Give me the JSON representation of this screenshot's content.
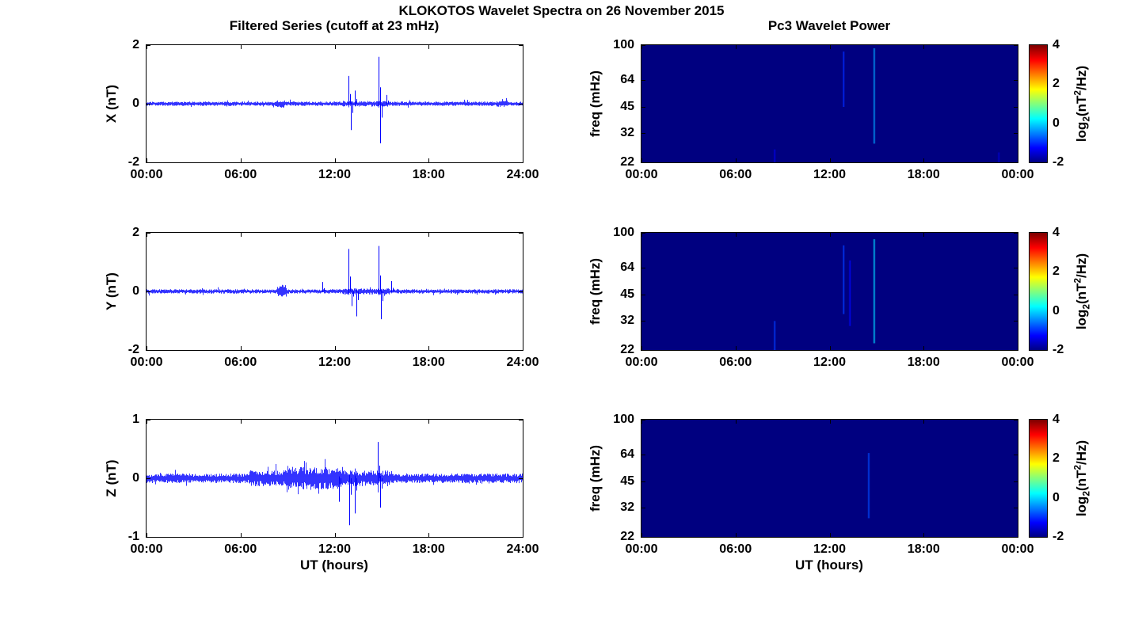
{
  "figure": {
    "title": "KLOKOTOS Wavelet Spectra on 26 November 2015",
    "left_column_title": "Filtered Series (cutoff at 23 mHz)",
    "right_column_title": "Pc3 Wavelet Power"
  },
  "colorbar": {
    "label": "log2(nT^2/Hz)",
    "label_parts": {
      "prefix": "log",
      "sub": "2",
      "mid": "(nT",
      "sup": "2",
      "suffix": "/Hz)"
    },
    "colormap": "jet",
    "clim": [
      -2,
      4
    ],
    "ticks": [
      4,
      2,
      0,
      -2
    ]
  },
  "chart_data": [
    {
      "type": "line",
      "component": "X",
      "ylabel": "X (nT)",
      "ylim": [
        -2,
        2
      ],
      "yticks": [
        2,
        0,
        -2
      ],
      "xlim_hours": [
        0,
        24
      ],
      "xticks": [
        "00:00",
        "06:00",
        "12:00",
        "18:00",
        "24:00"
      ],
      "line_color": "#0000ff",
      "noise_base": 0.05,
      "noise_bursts": [
        [
          8.2,
          8.8,
          0.09
        ],
        [
          12.5,
          15.5,
          0.065
        ],
        [
          22.3,
          23.0,
          0.08
        ]
      ],
      "spikes": [
        [
          12.9,
          0.95
        ],
        [
          13.05,
          -0.9
        ],
        [
          13.3,
          0.45
        ],
        [
          14.8,
          1.6
        ],
        [
          14.93,
          -1.35
        ],
        [
          15.3,
          0.3
        ]
      ]
    },
    {
      "type": "line",
      "component": "Y",
      "ylabel": "Y (nT)",
      "ylim": [
        -2,
        2
      ],
      "yticks": [
        2,
        0,
        -2
      ],
      "xlim_hours": [
        0,
        24
      ],
      "xticks": [
        "00:00",
        "06:00",
        "12:00",
        "18:00",
        "24:00"
      ],
      "line_color": "#0000ff",
      "noise_base": 0.05,
      "noise_bursts": [
        [
          8.3,
          8.9,
          0.15
        ],
        [
          12.5,
          15.5,
          0.07
        ]
      ],
      "spikes": [
        [
          11.2,
          0.32
        ],
        [
          12.9,
          1.45
        ],
        [
          13.1,
          -0.5
        ],
        [
          13.4,
          -0.85
        ],
        [
          14.8,
          1.55
        ],
        [
          14.95,
          -0.95
        ],
        [
          15.6,
          0.35
        ]
      ]
    },
    {
      "type": "line",
      "component": "Z",
      "ylabel": "Z (nT)",
      "xlabel": "UT (hours)",
      "ylim": [
        -1,
        1
      ],
      "yticks": [
        1,
        0,
        -1
      ],
      "xlim_hours": [
        0,
        24
      ],
      "xticks": [
        "00:00",
        "06:00",
        "12:00",
        "18:00",
        "24:00"
      ],
      "line_color": "#0000ff",
      "noise_base": 0.055,
      "noise_bursts": [
        [
          6.5,
          15.5,
          0.09
        ],
        [
          9.0,
          12.5,
          0.13
        ]
      ],
      "spikes": [
        [
          12.3,
          -0.4
        ],
        [
          12.95,
          -0.8
        ],
        [
          13.3,
          -0.6
        ],
        [
          14.75,
          0.62
        ],
        [
          14.88,
          -0.5
        ]
      ]
    },
    {
      "type": "heatmap",
      "component": "X",
      "ylabel": "freq (mHz)",
      "yscale": "log",
      "ylim": [
        22,
        100
      ],
      "yticks": [
        100,
        64,
        45,
        32,
        22
      ],
      "xlim_hours": [
        0,
        24
      ],
      "xticks": [
        "00:00",
        "06:00",
        "12:00",
        "18:00",
        "00:00"
      ],
      "clim": [
        -2,
        4
      ],
      "background_power": -2,
      "events": [
        [
          8.5,
          22,
          26,
          -1.4
        ],
        [
          12.9,
          45,
          92,
          -1.0
        ],
        [
          14.85,
          28,
          96,
          -0.3
        ],
        [
          22.8,
          22,
          25,
          -1.5
        ]
      ]
    },
    {
      "type": "heatmap",
      "component": "Y",
      "ylabel": "freq (mHz)",
      "yscale": "log",
      "ylim": [
        22,
        100
      ],
      "yticks": [
        100,
        64,
        45,
        32,
        22
      ],
      "xlim_hours": [
        0,
        24
      ],
      "xticks": [
        "00:00",
        "06:00",
        "12:00",
        "18:00",
        "00:00"
      ],
      "clim": [
        -2,
        4
      ],
      "background_power": -2,
      "events": [
        [
          8.5,
          22,
          32,
          -0.9
        ],
        [
          12.9,
          35,
          85,
          -0.9
        ],
        [
          13.3,
          30,
          70,
          -1.2
        ],
        [
          14.85,
          24,
          92,
          0.0
        ]
      ]
    },
    {
      "type": "heatmap",
      "component": "Z",
      "ylabel": "freq (mHz)",
      "xlabel": "UT (hours)",
      "yscale": "log",
      "ylim": [
        22,
        100
      ],
      "yticks": [
        100,
        64,
        45,
        32,
        22
      ],
      "xlim_hours": [
        0,
        24
      ],
      "xticks": [
        "00:00",
        "06:00",
        "12:00",
        "18:00",
        "00:00"
      ],
      "clim": [
        -2,
        4
      ],
      "background_power": -2,
      "events": [
        [
          14.5,
          28,
          65,
          -0.8
        ]
      ]
    }
  ]
}
